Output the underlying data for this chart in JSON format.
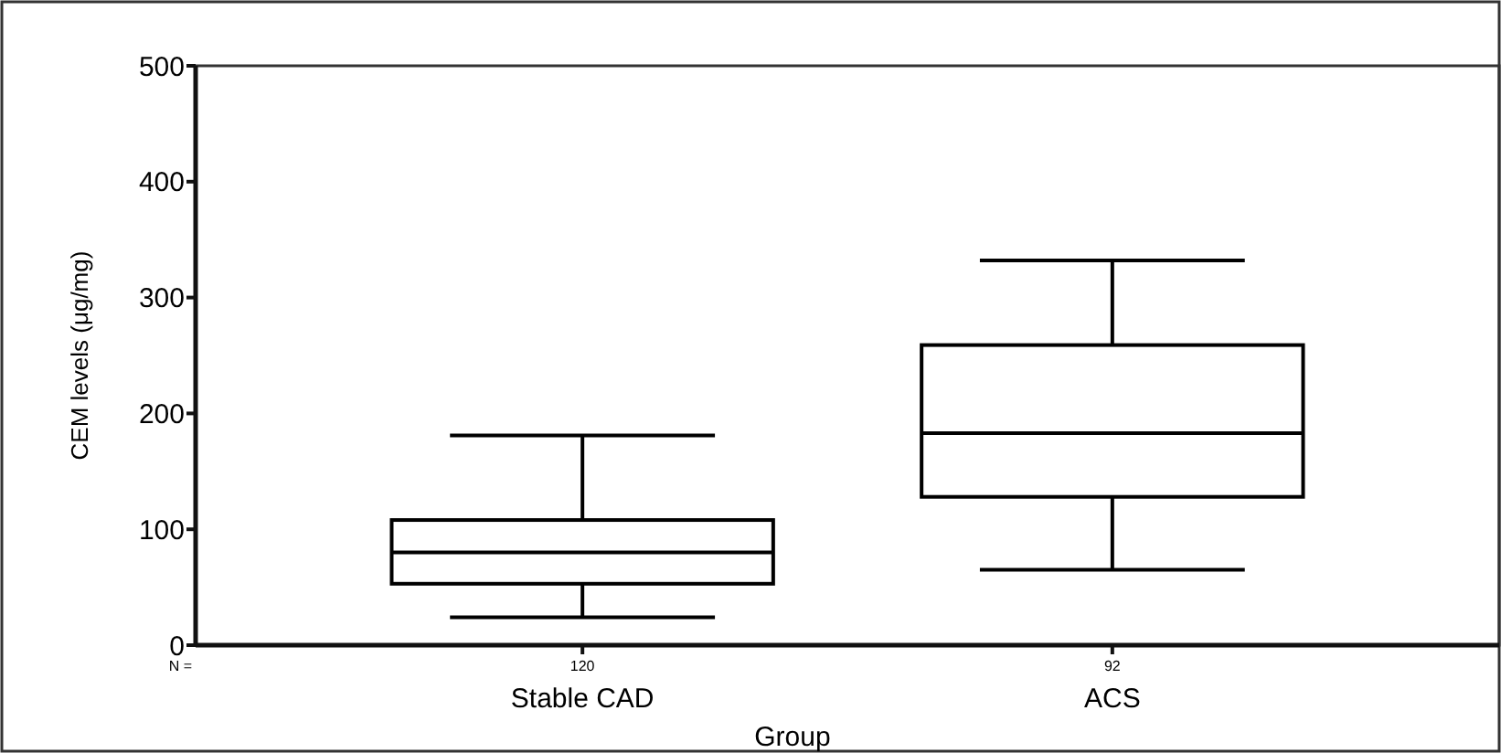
{
  "chart_data": {
    "type": "box",
    "xlabel": "Group",
    "ylabel": "CEM levels (μg/mg)",
    "categories": [
      "Stable CAD",
      "ACS"
    ],
    "boxes": [
      {
        "low": 24,
        "q1": 53,
        "median": 80,
        "q3": 108,
        "high": 181
      },
      {
        "low": 65,
        "q1": 128,
        "median": 183,
        "q3": 259,
        "high": 332
      }
    ],
    "color": "#000000",
    "ylim": [
      0,
      500
    ],
    "yticks": [
      0,
      100,
      200,
      300,
      400,
      500
    ],
    "grid": false,
    "annotations": [
      "N =",
      "120",
      "92"
    ]
  }
}
